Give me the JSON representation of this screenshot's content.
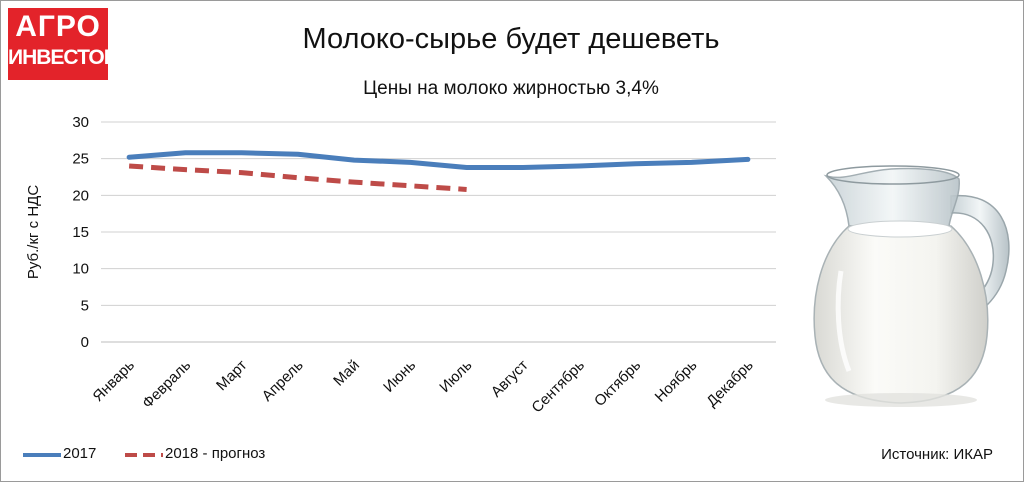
{
  "logo": {
    "line1": "АГРО",
    "line2": "ИНВЕСТОР"
  },
  "header": {
    "title": "Молоко-сырье будет дешеветь",
    "subtitle": "Цены на молоко жирностью 3,4%"
  },
  "chart_data": {
    "type": "line",
    "title": "Молоко-сырье будет дешеветь",
    "subtitle": "Цены на молоко жирностью 3,4%",
    "xlabel": "",
    "ylabel": "Руб./кг с НДС",
    "ylim": [
      0,
      30
    ],
    "yticks": [
      0,
      5,
      10,
      15,
      20,
      25,
      30
    ],
    "grid": true,
    "legend_position": "bottom-left",
    "categories": [
      "Январь",
      "Февраль",
      "Март",
      "Апрель",
      "Май",
      "Июнь",
      "Июль",
      "Август",
      "Сентябрь",
      "Октябрь",
      "Ноябрь",
      "Декабрь"
    ],
    "series": [
      {
        "name": "2017",
        "style": "solid",
        "color": "#4a7ebb",
        "values": [
          25.2,
          25.8,
          25.8,
          25.6,
          24.8,
          24.5,
          23.8,
          23.8,
          24.0,
          24.3,
          24.5,
          24.9
        ]
      },
      {
        "name": "2018 - прогноз",
        "style": "dashed",
        "color": "#be4b48",
        "values": [
          24.0,
          23.5,
          23.1,
          22.4,
          21.8,
          21.3,
          20.8,
          null,
          null,
          null,
          null,
          null
        ]
      }
    ]
  },
  "legend": {
    "items": [
      {
        "label": "2017",
        "color": "#4a7ebb"
      },
      {
        "label": "2018 - прогноз",
        "color": "#be4b48"
      }
    ]
  },
  "source": "Источник: ИКАР",
  "image": {
    "name": "milk-jug"
  }
}
